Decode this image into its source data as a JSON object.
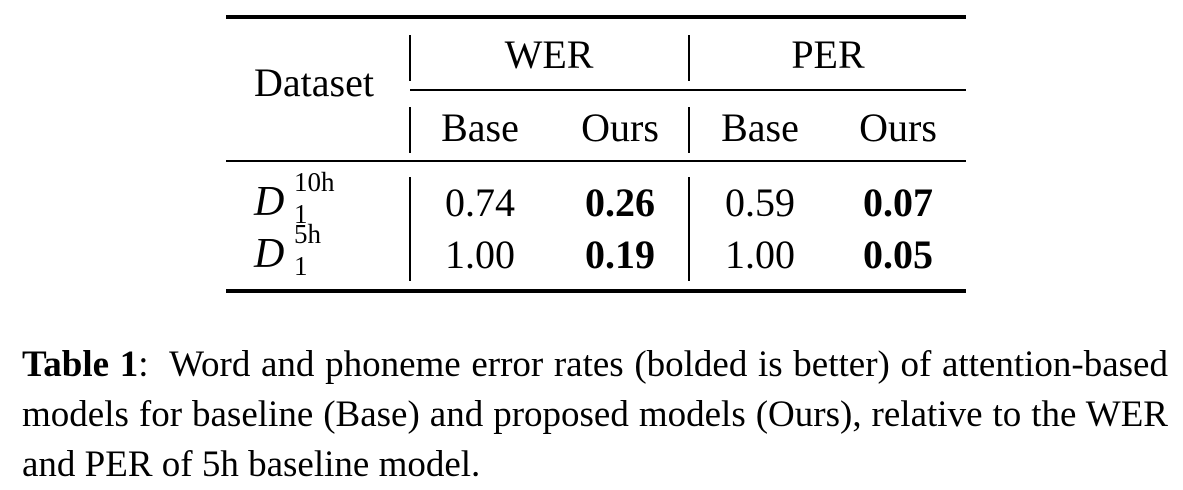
{
  "table": {
    "header": {
      "dataset": "Dataset",
      "groups": [
        "WER",
        "PER"
      ],
      "subcols": [
        "Base",
        "Ours",
        "Base",
        "Ours"
      ]
    },
    "rows": [
      {
        "dataset_base": "D",
        "dataset_sup": "10h",
        "dataset_sub": "1",
        "values": [
          "0.74",
          "0.26",
          "0.59",
          "0.07"
        ],
        "bold": [
          false,
          true,
          false,
          true
        ]
      },
      {
        "dataset_base": "D",
        "dataset_sup": "5h",
        "dataset_sub": "1",
        "values": [
          "1.00",
          "0.19",
          "1.00",
          "0.05"
        ],
        "bold": [
          false,
          true,
          false,
          true
        ]
      }
    ]
  },
  "caption": {
    "label": "Table 1",
    "separator": ":",
    "text": "Word and phoneme error rates (bolded is better) of attention-based models for baseline (Base) and proposed models (Ours), relative to the WER and PER of 5h baseline model."
  }
}
